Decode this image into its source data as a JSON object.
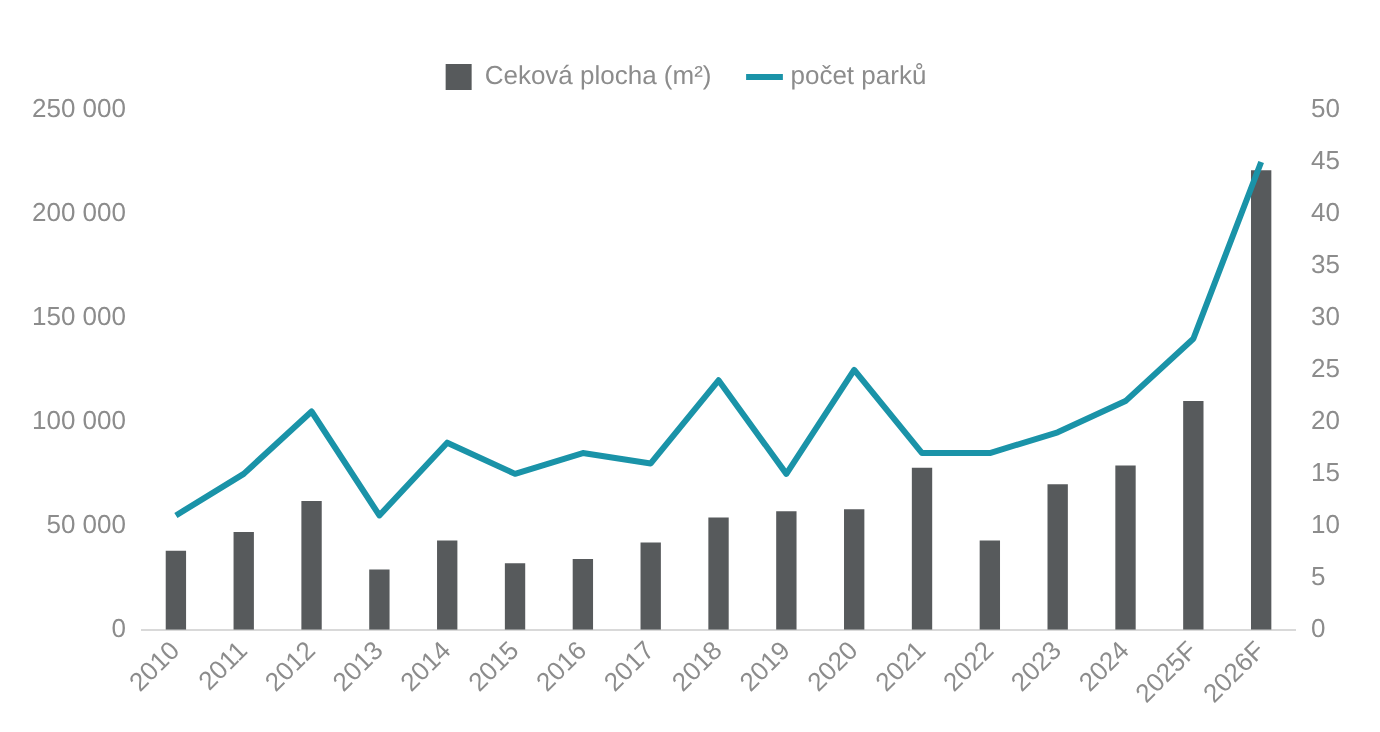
{
  "chart_data": {
    "type": "bar",
    "categories": [
      "2010",
      "2011",
      "2012",
      "2013",
      "2014",
      "2015",
      "2016",
      "2017",
      "2018",
      "2019",
      "2020",
      "2021",
      "2022",
      "2023",
      "2024",
      "2025F",
      "2026F"
    ],
    "series": [
      {
        "name": "Ceková plocha (m²)",
        "color": "#575a5c",
        "values": [
          38000,
          47000,
          62000,
          29000,
          43000,
          32000,
          34000,
          42000,
          54000,
          57000,
          58000,
          78000,
          43000,
          70000,
          79000,
          110000,
          221000
        ]
      },
      {
        "name": "počet parků",
        "type": "line",
        "axis": "y2",
        "color": "#1a93a8",
        "values": [
          11,
          15,
          21,
          11,
          18,
          15,
          17,
          16,
          24,
          15,
          25,
          17,
          17,
          19,
          22,
          28,
          45
        ]
      }
    ],
    "ylim": [
      0,
      250000
    ],
    "yticks": [
      {
        "value": 0,
        "label": "0"
      },
      {
        "value": 50000,
        "label": "50 000"
      },
      {
        "value": 100000,
        "label": "100 000"
      },
      {
        "value": 150000,
        "label": "150 000"
      },
      {
        "value": 200000,
        "label": "200 000"
      },
      {
        "value": 250000,
        "label": "250 000"
      }
    ],
    "y2lim": [
      0,
      50
    ],
    "y2ticks": [
      0,
      5,
      10,
      15,
      20,
      25,
      30,
      35,
      40,
      45,
      50
    ],
    "grid": false,
    "legend": "top",
    "marker": "none"
  }
}
